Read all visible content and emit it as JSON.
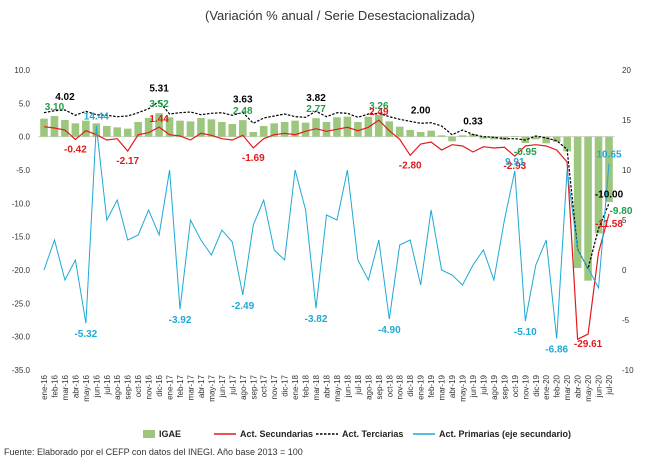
{
  "chart_data": {
    "type": "combo",
    "title": "(Variación % anual / Serie Desestacionalizada)",
    "source": "Fuente: Elaborado por el CEFP con datos del INEGI. Año base 2013 = 100",
    "categories": [
      "ene-16",
      "feb-16",
      "mar-16",
      "abr-16",
      "may-16",
      "jun-16",
      "jul-16",
      "ago-16",
      "sep-16",
      "oct-16",
      "nov-16",
      "dic-16",
      "ene-17",
      "feb-17",
      "mar-17",
      "abr-17",
      "may-17",
      "jun-17",
      "jul-17",
      "ago-17",
      "sep-17",
      "oct-17",
      "nov-17",
      "dic-17",
      "ene-18",
      "feb-18",
      "mar-18",
      "abr-18",
      "may-18",
      "jun-18",
      "jul-18",
      "ago-18",
      "sep-18",
      "oct-18",
      "nov-18",
      "dic-18",
      "ene-19",
      "feb-19",
      "mar-19",
      "abr-19",
      "may-19",
      "jun-19",
      "jul-19",
      "ago-19",
      "sep-19",
      "oct-19",
      "nov-19",
      "dic-19",
      "ene-20",
      "feb-20",
      "mar-20",
      "abr-20",
      "may-20",
      "jun-20",
      "jul-20"
    ],
    "ylim": [
      -35,
      10
    ],
    "yticks": [
      {
        "value": -35,
        "label": "-35.0"
      },
      {
        "value": -30,
        "label": "-30.0"
      },
      {
        "value": -25,
        "label": "-25.0"
      },
      {
        "value": -20,
        "label": "-20.0"
      },
      {
        "value": -15,
        "label": "-15.0"
      },
      {
        "value": -10,
        "label": "-10.0"
      },
      {
        "value": -5,
        "label": "-5.0"
      },
      {
        "value": 0,
        "label": "0.0"
      },
      {
        "value": 5,
        "label": "5.0"
      },
      {
        "value": 10,
        "label": "10.0"
      }
    ],
    "y2lim": [
      -10,
      20
    ],
    "y2ticks": [
      -10,
      -5,
      0,
      5,
      10,
      15,
      20
    ],
    "series": [
      {
        "name": "IGAE",
        "kind": "bar",
        "color": "#9dc77e",
        "label_color": "#1e9e4a",
        "values": [
          2.7,
          3.1,
          2.5,
          2.0,
          2.4,
          2.0,
          1.6,
          1.4,
          1.2,
          2.2,
          2.8,
          3.52,
          2.9,
          2.4,
          2.3,
          2.8,
          2.6,
          2.2,
          1.9,
          2.48,
          0.7,
          1.6,
          2.0,
          2.2,
          2.4,
          2.1,
          2.77,
          2.2,
          2.9,
          3.0,
          2.2,
          3.0,
          3.26,
          2.3,
          1.5,
          1.0,
          0.7,
          0.9,
          0.2,
          -0.7,
          0.2,
          0.4,
          -0.3,
          -0.4,
          -0.5,
          0.1,
          -0.95,
          -0.4,
          -1.0,
          -0.8,
          -2.2,
          -19.7,
          -21.6,
          -14.5,
          -9.8
        ],
        "value_labels": [
          null,
          "3.10",
          null,
          null,
          null,
          null,
          null,
          null,
          null,
          null,
          null,
          "3.52",
          null,
          null,
          null,
          null,
          null,
          null,
          null,
          "2.48",
          null,
          null,
          null,
          null,
          null,
          null,
          "2.77",
          null,
          null,
          null,
          null,
          null,
          "3.26",
          null,
          null,
          null,
          null,
          null,
          null,
          null,
          null,
          null,
          null,
          null,
          null,
          null,
          "-0.95",
          null,
          null,
          null,
          null,
          null,
          null,
          null,
          "-9.80"
        ]
      },
      {
        "name": "Act. Secundarias",
        "kind": "line",
        "color": "#e31a1c",
        "label_color": "#e31a1c",
        "values": [
          1.5,
          1.3,
          1.0,
          -0.42,
          0.9,
          0.3,
          -0.5,
          -0.3,
          -2.17,
          0.3,
          0.6,
          1.44,
          0.3,
          0.1,
          -0.5,
          0.5,
          0.2,
          -0.3,
          -0.5,
          0.2,
          -1.69,
          -0.3,
          0.3,
          0.5,
          0.3,
          0.8,
          1.2,
          0.8,
          1.1,
          1.4,
          0.9,
          1.4,
          2.49,
          0.9,
          -0.4,
          -2.8,
          -1.1,
          -0.8,
          -2.0,
          -1.2,
          -1.4,
          -2.3,
          -1.5,
          -1.7,
          -1.6,
          -2.93,
          -1.4,
          -1.2,
          -1.4,
          -2.0,
          -3.8,
          -30.4,
          -29.61,
          -17.4,
          -11.58
        ],
        "value_labels": [
          null,
          null,
          null,
          "-0.42",
          null,
          null,
          null,
          null,
          "-2.17",
          null,
          null,
          "1.44",
          null,
          null,
          null,
          null,
          null,
          null,
          null,
          null,
          "-1.69",
          null,
          null,
          null,
          null,
          null,
          null,
          null,
          null,
          null,
          null,
          null,
          "2.49",
          null,
          null,
          "-2.80",
          null,
          null,
          null,
          null,
          null,
          null,
          null,
          null,
          null,
          "-2.93",
          null,
          null,
          null,
          null,
          null,
          null,
          "-29.61",
          null,
          "-11.58"
        ]
      },
      {
        "name": "Act. Terciarias",
        "kind": "line",
        "line_style": "dashed",
        "color": "#000000",
        "label_color": "#000000",
        "values": [
          3.6,
          3.9,
          4.02,
          3.2,
          3.8,
          3.3,
          3.2,
          3.0,
          3.1,
          3.6,
          4.2,
          5.31,
          3.4,
          3.6,
          3.7,
          3.3,
          3.5,
          3.6,
          3.2,
          3.63,
          2.0,
          2.8,
          3.1,
          3.4,
          3.0,
          2.9,
          3.82,
          3.0,
          3.6,
          3.5,
          2.9,
          3.4,
          3.5,
          3.0,
          2.6,
          2.3,
          2.0,
          2.1,
          1.6,
          0.3,
          1.0,
          0.33,
          0.0,
          -0.1,
          -0.3,
          -0.3,
          -0.5,
          0.1,
          -0.2,
          -0.6,
          -1.9,
          -16.9,
          -19.8,
          -13.8,
          -10.0
        ],
        "value_labels": [
          null,
          null,
          "4.02",
          null,
          null,
          null,
          null,
          null,
          null,
          null,
          null,
          "5.31",
          null,
          null,
          null,
          null,
          null,
          null,
          null,
          "3.63",
          null,
          null,
          null,
          null,
          null,
          null,
          "3.82",
          null,
          null,
          null,
          null,
          null,
          null,
          null,
          null,
          null,
          "2.00",
          null,
          null,
          null,
          null,
          "0.33",
          null,
          null,
          null,
          null,
          null,
          null,
          null,
          null,
          null,
          null,
          null,
          null,
          "-10.00"
        ]
      },
      {
        "name": "Act. Primarias (eje secundario)",
        "kind": "line",
        "axis": "y2",
        "color": "#1fa9d6",
        "label_color": "#1fa9d6",
        "values": [
          0,
          3,
          -1,
          1,
          -5.32,
          14.44,
          5,
          7,
          3,
          3.5,
          6,
          3.5,
          10,
          -3.92,
          5,
          3,
          1.5,
          4,
          2.8,
          -2.49,
          4.5,
          7,
          2,
          1,
          10,
          6,
          -3.82,
          5.5,
          5,
          10,
          1,
          -1,
          3,
          -4.9,
          2.5,
          3,
          -1.5,
          6,
          0,
          -0.5,
          -1.5,
          0.5,
          2,
          -1,
          5,
          9.91,
          -5.1,
          0.5,
          3,
          -6.86,
          10,
          2,
          0.2,
          -1.8,
          10.65
        ],
        "value_labels": [
          null,
          null,
          null,
          null,
          "-5.32",
          "14.44",
          null,
          null,
          null,
          null,
          null,
          null,
          null,
          "-3.92",
          null,
          null,
          null,
          null,
          null,
          "-2.49",
          null,
          null,
          null,
          null,
          null,
          null,
          "-3.82",
          null,
          null,
          null,
          null,
          null,
          null,
          "-4.90",
          null,
          null,
          null,
          null,
          null,
          null,
          null,
          null,
          null,
          null,
          null,
          "9.91",
          "-5.10",
          null,
          null,
          "-6.86",
          null,
          null,
          null,
          null,
          "10.65"
        ]
      }
    ]
  }
}
